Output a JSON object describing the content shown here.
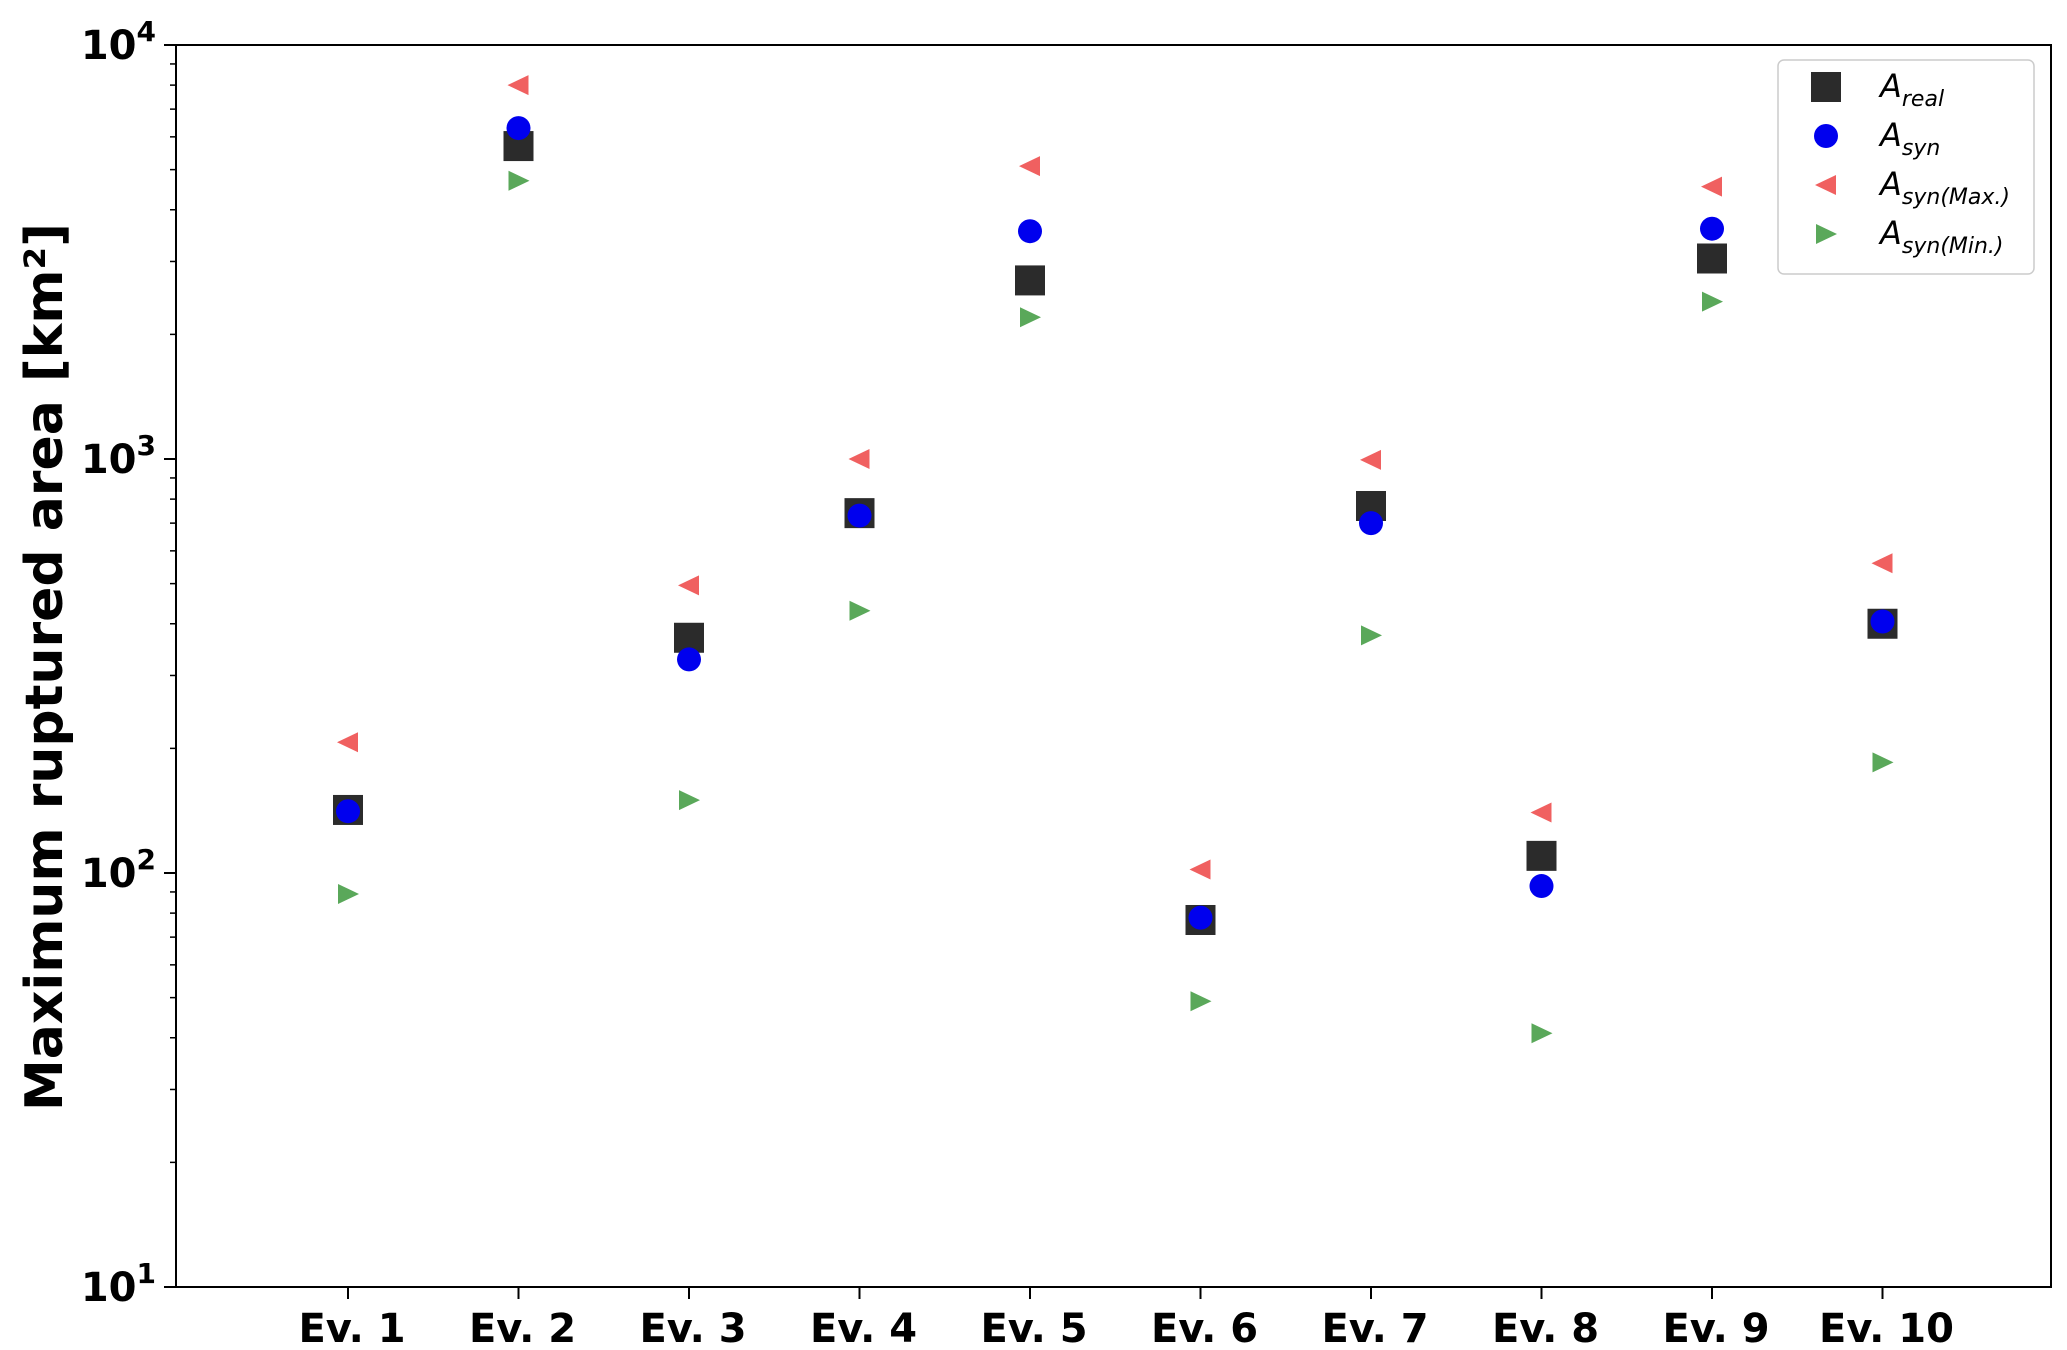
{
  "chart_data": {
    "type": "scatter",
    "title": "",
    "xlabel": "",
    "ylabel": "Maximum ruptured area [km²]",
    "yscale": "log",
    "ylim": [
      10,
      10000
    ],
    "y_ticks": [
      {
        "value": 10,
        "base": "10",
        "exp": "1"
      },
      {
        "value": 100,
        "base": "10",
        "exp": "2"
      },
      {
        "value": 1000,
        "base": "10",
        "exp": "3"
      },
      {
        "value": 10000,
        "base": "10",
        "exp": "4"
      }
    ],
    "categories": [
      "Ev. 1",
      "Ev. 2",
      "Ev. 3",
      "Ev. 4",
      "Ev. 5",
      "Ev. 6",
      "Ev. 7",
      "Ev. 8",
      "Ev. 9",
      "Ev. 10"
    ],
    "grid": false,
    "legend_position": "top-right",
    "series": [
      {
        "name": "A_real",
        "label_main": "A",
        "label_sub": "real",
        "marker": "square",
        "color": "#2b2b2b",
        "values": [
          142,
          5700,
          370,
          740,
          2700,
          77,
          770,
          110,
          3050,
          400
        ]
      },
      {
        "name": "A_syn",
        "label_main": "A",
        "label_sub": "syn",
        "marker": "circle",
        "color": "#0000ee",
        "values": [
          141,
          6300,
          328,
          730,
          3550,
          78,
          700,
          93,
          3600,
          405
        ]
      },
      {
        "name": "A_syn(Max.)",
        "label_main": "A",
        "label_sub": "syn(Max.)",
        "marker": "triangle-left",
        "color": "#f06060",
        "values": [
          207,
          8000,
          495,
          1000,
          5100,
          102,
          995,
          140,
          4550,
          560
        ]
      },
      {
        "name": "A_syn(Min.)",
        "label_main": "A",
        "label_sub": "syn(Min.)",
        "marker": "triangle-right",
        "color": "#5aa85a",
        "values": [
          89,
          4700,
          150,
          430,
          2200,
          49,
          375,
          41,
          2400,
          185
        ]
      }
    ]
  }
}
